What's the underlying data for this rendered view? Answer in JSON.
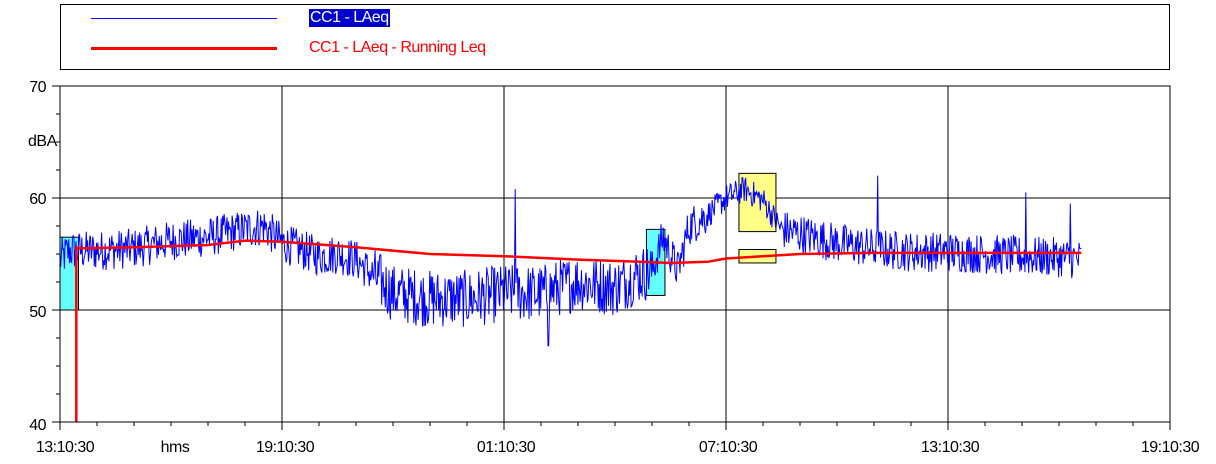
{
  "legend": {
    "items": [
      {
        "label": "CC1 - LAeq",
        "color": "#0000ff",
        "highlight_bg": "#0000cc",
        "text_color": "#ffffff"
      },
      {
        "label": "CC1 - LAeq - Running Leq",
        "color": "#ff0000",
        "text_color": "#ff0000"
      }
    ]
  },
  "chart_data": {
    "type": "line",
    "ylabel": "dBA",
    "xunit_label": "hms",
    "ylim": [
      40,
      70
    ],
    "yticks": [
      "40",
      "50",
      "60",
      "70"
    ],
    "xticks": [
      "13:10:30",
      "19:10:30",
      "01:10:30",
      "07:10:30",
      "13:10:30",
      "19:10:30"
    ],
    "x_range_hours": [
      0,
      30
    ],
    "grid": true,
    "series": [
      {
        "name": "CC1 - LAeq",
        "color": "#0000ff",
        "envelope_hours": [
          0,
          0.25,
          1,
          2,
          3,
          4,
          5,
          5.5,
          6,
          7,
          7.5,
          8,
          9,
          10,
          11,
          12,
          13,
          14,
          15,
          15.5,
          16,
          16.3,
          16.7,
          17,
          17.5,
          18,
          18.5,
          19,
          19.5,
          20,
          21,
          22,
          23,
          24,
          25,
          26,
          27,
          27.6
        ],
        "envelope_values": [
          54.5,
          55.3,
          55.3,
          55.5,
          56.2,
          56.5,
          57.2,
          57.5,
          56,
          54.8,
          55,
          54.5,
          51.5,
          51,
          51,
          51.5,
          51.5,
          52.5,
          52,
          53,
          53.5,
          56.5,
          53.5,
          57.5,
          58.5,
          60,
          60.8,
          59.8,
          57.2,
          56.8,
          56,
          55.5,
          55.2,
          55.2,
          55,
          54.8,
          54.7,
          54.5
        ],
        "spikes": [
          [
            12.3,
            60.8
          ],
          [
            13.2,
            46.8
          ],
          [
            22.1,
            62
          ],
          [
            26.1,
            60.5
          ],
          [
            27.3,
            59.5
          ]
        ]
      },
      {
        "name": "CC1 - LAeq - Running Leq",
        "color": "#ff0000",
        "x_hours": [
          0.44,
          0.44,
          0.5,
          2,
          4,
          5,
          6,
          8,
          10,
          12,
          14,
          15.7,
          16.5,
          17.5,
          18,
          19,
          20,
          22,
          24,
          26,
          27.6
        ],
        "values": [
          40,
          55.6,
          55.5,
          55.6,
          55.8,
          56.2,
          56.1,
          55.6,
          55,
          54.8,
          54.5,
          54.3,
          54.2,
          54.3,
          54.6,
          54.8,
          55,
          55.1,
          55.1,
          55.1,
          55.1
        ]
      }
    ],
    "annotations": [
      {
        "type": "box",
        "color": "#66ffff",
        "x1": 0,
        "x2": 0.5,
        "y1": 50.0,
        "y2": 56.5
      },
      {
        "type": "box",
        "color": "#66ffff",
        "x1": 15.85,
        "x2": 16.35,
        "y1": 51.3,
        "y2": 57.2
      },
      {
        "type": "box",
        "color": "#ffff88",
        "x1": 18.35,
        "x2": 19.35,
        "y1": 57.0,
        "y2": 62.2
      },
      {
        "type": "box",
        "color": "#ffff88",
        "x1": 18.35,
        "x2": 19.35,
        "y1": 54.2,
        "y2": 55.4
      }
    ]
  }
}
